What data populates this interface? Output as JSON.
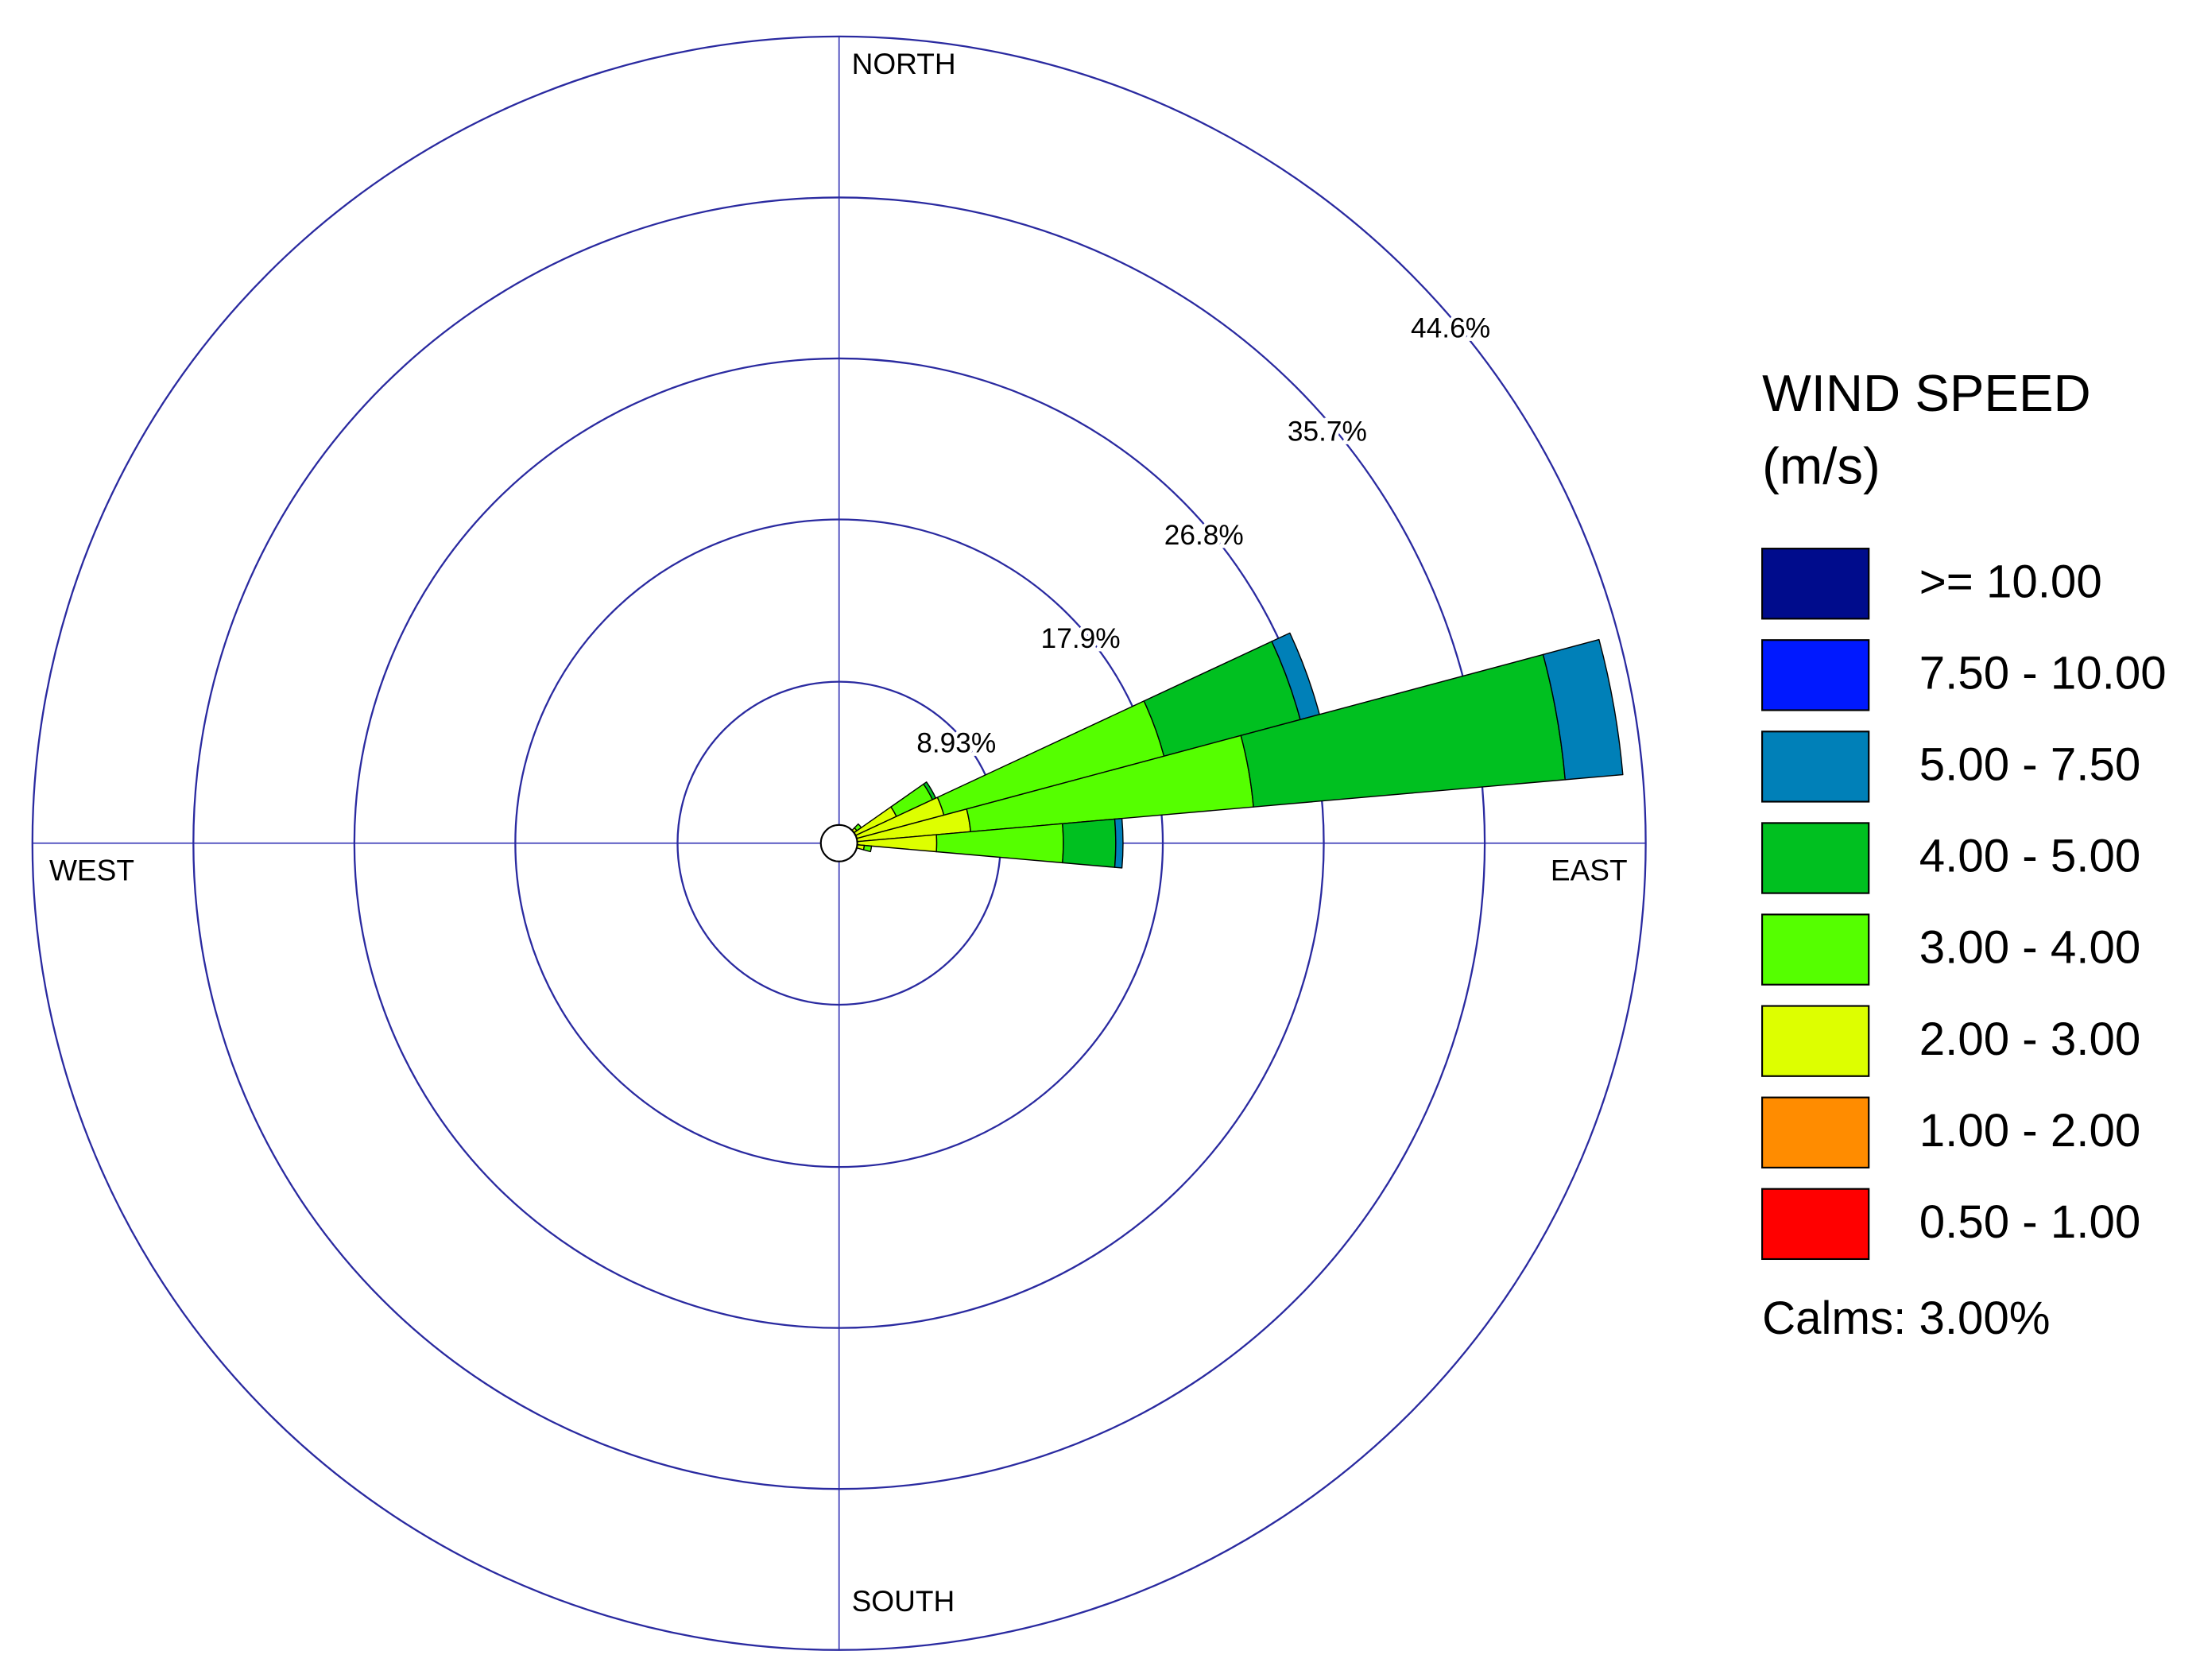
{
  "chart_data": {
    "type": "windrose",
    "legend_title": [
      "WIND SPEED",
      "(m/s)"
    ],
    "direction_labels": [
      "NORTH",
      "EAST",
      "SOUTH",
      "WEST"
    ],
    "directions": [
      50,
      60,
      70,
      80,
      90,
      100
    ],
    "rlim": [
      0,
      44.6
    ],
    "rticks": [
      {
        "value": 8.93,
        "label": "8.93%"
      },
      {
        "value": 17.9,
        "label": "17.9%"
      },
      {
        "value": 26.8,
        "label": "26.8%"
      },
      {
        "value": 35.7,
        "label": "35.7%"
      },
      {
        "value": 44.6,
        "label": "44.6%"
      }
    ],
    "series": [
      {
        "name": ">= 10.00",
        "color": "#000c8c",
        "values": [
          0,
          0,
          0,
          0,
          0,
          0
        ]
      },
      {
        "name": "7.50 - 10.00",
        "color": "#0019ff",
        "values": [
          0,
          0,
          0,
          0,
          0,
          0
        ]
      },
      {
        "name": "5.00 - 7.50",
        "color": "#0080b8",
        "values": [
          0,
          0,
          1.1,
          3.2,
          0.4,
          0
        ]
      },
      {
        "name": "4.00 - 5.00",
        "color": "#00c020",
        "values": [
          0,
          0.2,
          7.8,
          17.3,
          2.9,
          0
        ]
      },
      {
        "name": "3.00 - 4.00",
        "color": "#55ff00",
        "values": [
          0.3,
          2.2,
          12.6,
          15.7,
          7.0,
          0.4
        ]
      },
      {
        "name": "2.00 - 3.00",
        "color": "#ddff00",
        "values": [
          0.6,
          2.8,
          5.4,
          6.5,
          4.8,
          0.8
        ]
      },
      {
        "name": "1.00 - 2.00",
        "color": "#ff8c00",
        "values": [
          0.4,
          0.5,
          0.4,
          0.6,
          0.4,
          0.4
        ]
      },
      {
        "name": "0.50 - 1.00",
        "color": "#ff0000",
        "values": [
          0.2,
          0.2,
          0.2,
          0.2,
          0.2,
          0.2
        ]
      }
    ],
    "calms": {
      "value": 3.0,
      "label": "Calms: 3.00%"
    }
  }
}
